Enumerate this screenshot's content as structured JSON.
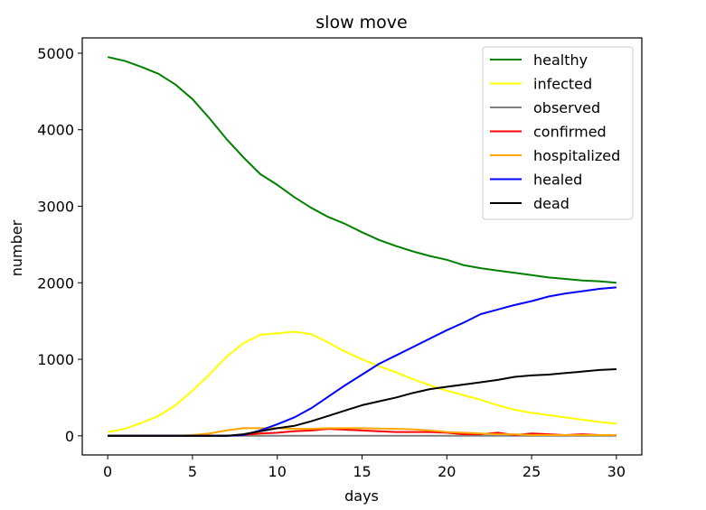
{
  "chart_data": {
    "type": "line",
    "title": "slow move",
    "xlabel": "days",
    "ylabel": "number",
    "xlim": [
      -1.5,
      31.5
    ],
    "ylim": [
      -250,
      5200
    ],
    "xticks": [
      0,
      5,
      10,
      15,
      20,
      25,
      30
    ],
    "yticks": [
      0,
      1000,
      2000,
      3000,
      4000,
      5000
    ],
    "grid": false,
    "legend_position": "top-right",
    "x": [
      0,
      1,
      2,
      3,
      4,
      5,
      6,
      7,
      8,
      9,
      10,
      11,
      12,
      13,
      14,
      15,
      16,
      17,
      18,
      19,
      20,
      21,
      22,
      23,
      24,
      25,
      26,
      27,
      28,
      29,
      30
    ],
    "series": [
      {
        "name": "healthy",
        "color": "#008000",
        "values": [
          4950,
          4900,
          4820,
          4730,
          4590,
          4400,
          4150,
          3880,
          3640,
          3420,
          3280,
          3120,
          2980,
          2860,
          2770,
          2660,
          2560,
          2480,
          2410,
          2350,
          2300,
          2230,
          2190,
          2160,
          2130,
          2100,
          2070,
          2050,
          2030,
          2020,
          2000
        ]
      },
      {
        "name": "infected",
        "color": "#ffff00",
        "values": [
          50,
          90,
          170,
          260,
          400,
          590,
          800,
          1030,
          1210,
          1320,
          1340,
          1360,
          1330,
          1220,
          1100,
          1000,
          910,
          830,
          740,
          660,
          590,
          530,
          470,
          400,
          340,
          300,
          270,
          240,
          210,
          180,
          160
        ]
      },
      {
        "name": "observed",
        "color": "#808080",
        "values": [
          0,
          0,
          0,
          0,
          0,
          0,
          0,
          0,
          0,
          0,
          0,
          0,
          0,
          0,
          0,
          0,
          0,
          0,
          0,
          0,
          0,
          0,
          0,
          0,
          0,
          0,
          0,
          0,
          0,
          0,
          0
        ]
      },
      {
        "name": "confirmed",
        "color": "#ff0000",
        "values": [
          0,
          0,
          0,
          0,
          0,
          0,
          0,
          0,
          10,
          30,
          40,
          60,
          70,
          90,
          80,
          70,
          60,
          50,
          50,
          50,
          40,
          20,
          20,
          40,
          10,
          30,
          20,
          10,
          20,
          10,
          10
        ]
      },
      {
        "name": "hospitalized",
        "color": "#ffa500",
        "values": [
          0,
          0,
          0,
          0,
          0,
          10,
          30,
          70,
          100,
          100,
          100,
          90,
          90,
          100,
          100,
          100,
          95,
          90,
          85,
          70,
          50,
          40,
          30,
          20,
          20,
          10,
          10,
          10,
          10,
          10,
          10
        ]
      },
      {
        "name": "healed",
        "color": "#0000ff",
        "values": [
          0,
          0,
          0,
          0,
          0,
          0,
          0,
          0,
          10,
          70,
          150,
          240,
          360,
          510,
          660,
          800,
          940,
          1050,
          1160,
          1270,
          1380,
          1480,
          1590,
          1650,
          1710,
          1760,
          1820,
          1860,
          1890,
          1920,
          1940
        ]
      },
      {
        "name": "dead",
        "color": "#000000",
        "values": [
          0,
          0,
          0,
          0,
          0,
          0,
          0,
          0,
          20,
          60,
          100,
          130,
          190,
          260,
          330,
          400,
          450,
          500,
          560,
          610,
          640,
          670,
          700,
          730,
          770,
          790,
          800,
          820,
          840,
          860,
          870
        ]
      }
    ]
  }
}
